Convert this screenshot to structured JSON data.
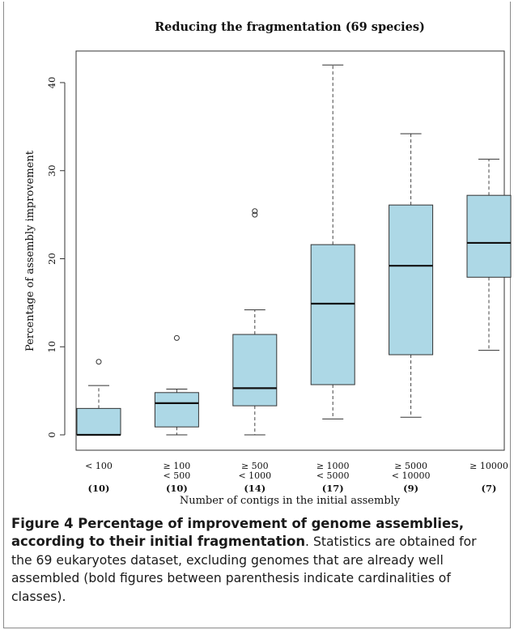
{
  "chart_data": {
    "type": "box",
    "title": "Reducing the fragmentation (69 species)",
    "xlabel": "Number of contigs in the initial assembly",
    "ylabel": "Percentage of assembly improvement",
    "ylim": [
      -2,
      44
    ],
    "yticks": [
      0,
      10,
      20,
      30,
      40
    ],
    "box_fill": "#add8e6",
    "box_stroke": "#333333",
    "categories": [
      {
        "line1": "< 100",
        "line2": "",
        "count": "(10)"
      },
      {
        "line1": "≥ 100",
        "line2": "< 500",
        "count": "(10)"
      },
      {
        "line1": "≥ 500",
        "line2": "< 1000",
        "count": "(14)"
      },
      {
        "line1": "≥ 1000",
        "line2": "< 5000",
        "count": "(17)"
      },
      {
        "line1": "≥ 5000",
        "line2": "< 10000",
        "count": "(9)"
      },
      {
        "line1": "≥ 10000",
        "line2": "",
        "count": "(7)"
      }
    ],
    "boxes": [
      {
        "whisker_low": 0.0,
        "q1": 0.0,
        "median": 0.0,
        "q3": 3.0,
        "whisker_high": 5.6,
        "outliers": [
          8.3
        ]
      },
      {
        "whisker_low": 0.0,
        "q1": 0.9,
        "median": 3.6,
        "q3": 4.8,
        "whisker_high": 5.2,
        "outliers": [
          11.0
        ]
      },
      {
        "whisker_low": 0.0,
        "q1": 3.3,
        "median": 5.3,
        "q3": 11.4,
        "whisker_high": 14.2,
        "outliers": [
          25.0,
          25.4
        ]
      },
      {
        "whisker_low": 1.8,
        "q1": 5.7,
        "median": 14.9,
        "q3": 21.6,
        "whisker_high": 42.0,
        "outliers": []
      },
      {
        "whisker_low": 2.0,
        "q1": 9.1,
        "median": 19.2,
        "q3": 26.1,
        "whisker_high": 34.2,
        "outliers": []
      },
      {
        "whisker_low": 9.6,
        "q1": 17.9,
        "median": 21.8,
        "q3": 27.2,
        "whisker_high": 31.3,
        "outliers": []
      }
    ]
  },
  "caption": {
    "label": "Figure 4 Percentage of improvement of genome assemblies, according to their initial fragmentation",
    "text": ". Statistics are obtained for the 69 eukaryotes dataset, excluding genomes that are already well assembled (bold figures between parenthesis indicate cardinalities of classes)."
  }
}
